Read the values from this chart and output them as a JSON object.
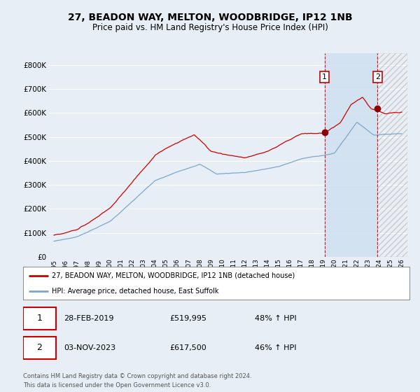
{
  "title": "27, BEADON WAY, MELTON, WOODBRIDGE, IP12 1NB",
  "subtitle": "Price paid vs. HM Land Registry's House Price Index (HPI)",
  "title_fontsize": 10,
  "subtitle_fontsize": 8.5,
  "ylim": [
    0,
    850000
  ],
  "yticks": [
    0,
    100000,
    200000,
    300000,
    400000,
    500000,
    600000,
    700000,
    800000
  ],
  "ytick_labels": [
    "£0",
    "£100K",
    "£200K",
    "£300K",
    "£400K",
    "£500K",
    "£600K",
    "£700K",
    "£800K"
  ],
  "background_color": "#e8eef5",
  "plot_bg_color": "#e8eef5",
  "grid_color": "#ffffff",
  "red_color": "#cc0000",
  "blue_color": "#7ba7cc",
  "shade_color": "#d0e0f0",
  "marker1_value": 519995,
  "marker2_value": 617500,
  "year1": 2019.12,
  "year2": 2023.84,
  "legend_label1": "27, BEADON WAY, MELTON, WOODBRIDGE, IP12 1NB (detached house)",
  "legend_label2": "HPI: Average price, detached house, East Suffolk",
  "table_row1": [
    "1",
    "28-FEB-2019",
    "£519,995",
    "48% ↑ HPI"
  ],
  "table_row2": [
    "2",
    "03-NOV-2023",
    "£617,500",
    "46% ↑ HPI"
  ],
  "footer": "Contains HM Land Registry data © Crown copyright and database right 2024.\nThis data is licensed under the Open Government Licence v3.0.",
  "xstart_year": 1995,
  "xend_year": 2026
}
